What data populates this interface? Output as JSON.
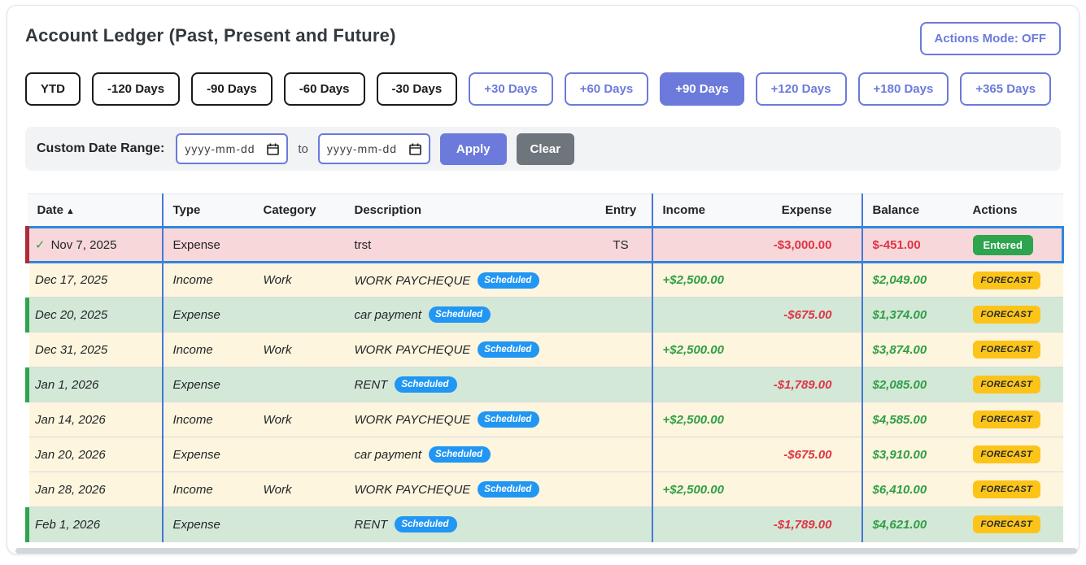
{
  "header": {
    "title": "Account Ledger (Past, Present and Future)",
    "actions_mode_label": "Actions Mode: OFF"
  },
  "filters": {
    "past": [
      "YTD",
      "-120 Days",
      "-90 Days",
      "-60 Days",
      "-30 Days"
    ],
    "future": [
      "+30 Days",
      "+60 Days",
      "+90 Days",
      "+120 Days",
      "+180 Days",
      "+365 Days"
    ],
    "selected": "+90 Days"
  },
  "custom_range": {
    "label": "Custom Date Range:",
    "start_placeholder": "yyyy-mm-dd",
    "to_label": "to",
    "end_placeholder": "yyyy-mm-dd",
    "apply_label": "Apply",
    "clear_label": "Clear"
  },
  "icons": {
    "sort_asc": "▲",
    "check": "✓"
  },
  "table": {
    "columns": [
      "Date",
      "Type",
      "Category",
      "Description",
      "Entry",
      "Income",
      "Expense",
      "Balance",
      "Actions"
    ],
    "sort_column": "Date",
    "sort_direction": "ascending",
    "scheduled_badge_label": "Scheduled",
    "rows": [
      {
        "date": "Nov 7, 2025",
        "check": true,
        "type": "Expense",
        "category": "",
        "description": "trst",
        "scheduled": false,
        "entry": "TS",
        "income": "",
        "expense": "-$3,000.00",
        "balance": "$-451.00",
        "balance_negative": true,
        "action": "Entered",
        "action_type": "entered",
        "style": "selected"
      },
      {
        "date": "Dec 17, 2025",
        "check": false,
        "type": "Income",
        "category": "Work",
        "description": "WORK PAYCHEQUE",
        "scheduled": true,
        "entry": "",
        "income": "+$2,500.00",
        "expense": "",
        "balance": "$2,049.00",
        "balance_negative": false,
        "action": "FORECAST",
        "action_type": "forecast",
        "style": "cream"
      },
      {
        "date": "Dec 20, 2025",
        "check": false,
        "type": "Expense",
        "category": "",
        "description": "car payment",
        "scheduled": true,
        "entry": "",
        "income": "",
        "expense": "-$675.00",
        "balance": "$1,374.00",
        "balance_negative": false,
        "action": "FORECAST",
        "action_type": "forecast",
        "style": "green"
      },
      {
        "date": "Dec 31, 2025",
        "check": false,
        "type": "Income",
        "category": "Work",
        "description": "WORK PAYCHEQUE",
        "scheduled": true,
        "entry": "",
        "income": "+$2,500.00",
        "expense": "",
        "balance": "$3,874.00",
        "balance_negative": false,
        "action": "FORECAST",
        "action_type": "forecast",
        "style": "cream"
      },
      {
        "date": "Jan 1, 2026",
        "check": false,
        "type": "Expense",
        "category": "",
        "description": "RENT",
        "scheduled": true,
        "entry": "",
        "income": "",
        "expense": "-$1,789.00",
        "balance": "$2,085.00",
        "balance_negative": false,
        "action": "FORECAST",
        "action_type": "forecast",
        "style": "green"
      },
      {
        "date": "Jan 14, 2026",
        "check": false,
        "type": "Income",
        "category": "Work",
        "description": "WORK PAYCHEQUE",
        "scheduled": true,
        "entry": "",
        "income": "+$2,500.00",
        "expense": "",
        "balance": "$4,585.00",
        "balance_negative": false,
        "action": "FORECAST",
        "action_type": "forecast",
        "style": "cream"
      },
      {
        "date": "Jan 20, 2026",
        "check": false,
        "type": "Expense",
        "category": "",
        "description": "car payment",
        "scheduled": true,
        "entry": "",
        "income": "",
        "expense": "-$675.00",
        "balance": "$3,910.00",
        "balance_negative": false,
        "action": "FORECAST",
        "action_type": "forecast",
        "style": "cream"
      },
      {
        "date": "Jan 28, 2026",
        "check": false,
        "type": "Income",
        "category": "Work",
        "description": "WORK PAYCHEQUE",
        "scheduled": true,
        "entry": "",
        "income": "+$2,500.00",
        "expense": "",
        "balance": "$6,410.00",
        "balance_negative": false,
        "action": "FORECAST",
        "action_type": "forecast",
        "style": "cream"
      },
      {
        "date": "Feb 1, 2026",
        "check": false,
        "type": "Expense",
        "category": "",
        "description": "RENT",
        "scheduled": true,
        "entry": "",
        "income": "",
        "expense": "-$1,789.00",
        "balance": "$4,621.00",
        "balance_negative": false,
        "action": "FORECAST",
        "action_type": "forecast",
        "style": "green"
      }
    ]
  },
  "colors": {
    "accent": "#6b7adb",
    "sep_blue": "#4678d8",
    "header_bg": "#f8f9fa",
    "row_cream": "#fdf5dd",
    "row_green": "#d4e8d8",
    "row_pink": "#f8d7da",
    "green_border": "#2da44e",
    "red_border": "#b02a37",
    "sel_blue": "#2e86e0",
    "income_green": "#2f9e44",
    "expense_red": "#dc3545",
    "scheduled_blue": "#2196f3",
    "forecast_amber": "#fcc419",
    "entered_green": "#2da44e"
  }
}
